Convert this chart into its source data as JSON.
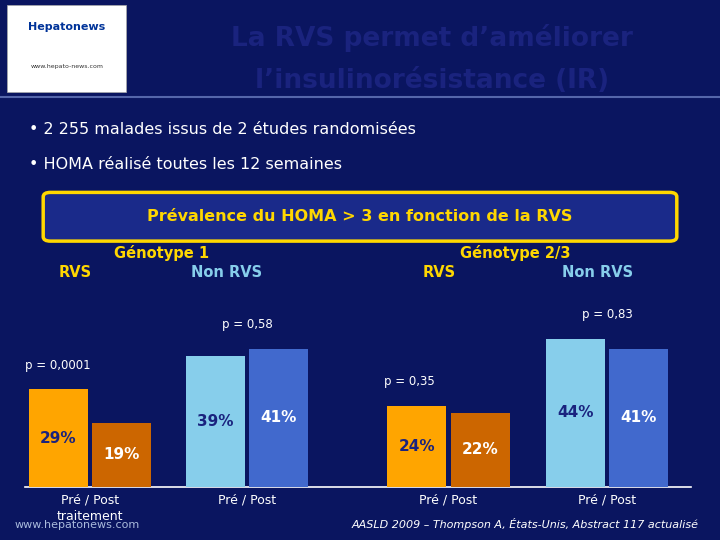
{
  "title_line1": "La RVS permet d’améliorer",
  "title_line2": "l’insulinorésistance (IR)",
  "bullet1": "2 255 malades issus de 2 études randomisées",
  "bullet2": "HOMA réalisé toutes les 12 semaines",
  "box_title": "Prévalence du HOMA > 3 en fonction de la RVS",
  "genotype1_label": "Génotype 1",
  "genotype2_label": "Génotype 2/3",
  "rvs_label": "RVS",
  "nonrvs_label": "Non RVS",
  "g1_rvs_pre": 29,
  "g1_rvs_post": 19,
  "g1_nonrvs_pre": 39,
  "g1_nonrvs_post": 41,
  "g2_rvs_pre": 24,
  "g2_rvs_post": 22,
  "g2_nonrvs_pre": 44,
  "g2_nonrvs_post": 41,
  "p_g1_rvs": "p = 0,0001",
  "p_g1_nonrvs": "p = 0,58",
  "p_g2_rvs": "p = 0,35",
  "p_g2_nonrvs": "p = 0,83",
  "color_orange_pre": "#FFA500",
  "color_orange_post": "#CC6600",
  "color_light_blue": "#87CEEB",
  "color_blue": "#4169CD",
  "color_dark_blue_bg": "#0A1560",
  "color_header_bg": "#C8D4E8",
  "color_gold": "#FFD700",
  "color_white": "#FFFFFF",
  "color_text_dark": "#1a237e",
  "footnote": "AASLD 2009 – Thompson A, États-Unis, Abstract 117 actualisé",
  "bar_max_val": 50,
  "bar_bottom": 0.12,
  "bar_width": 0.082,
  "bar_gap": 0.006,
  "bar_scale": 0.38
}
